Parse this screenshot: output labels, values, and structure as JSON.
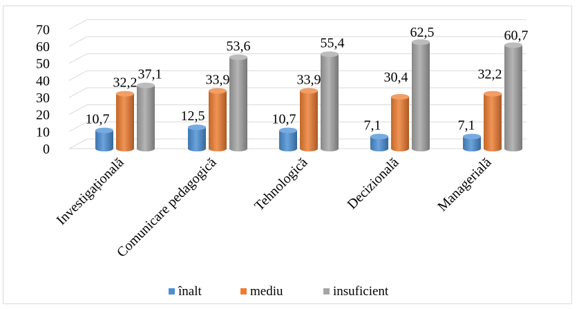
{
  "chart_data": {
    "type": "bar",
    "style": "3d-cylinder",
    "categories": [
      "Investigațională",
      "Comunicare pedagogică",
      "Tehnologică",
      "Decizională",
      "Managerială"
    ],
    "series": [
      {
        "name": "înalt",
        "color": "#4a8fd6",
        "values": [
          10.7,
          12.5,
          10.7,
          7.1,
          7.1
        ],
        "labels": [
          "10,7",
          "12,5",
          "10,7",
          "7,1",
          "7,1"
        ]
      },
      {
        "name": "mediu",
        "color": "#ed7d31",
        "values": [
          32.2,
          33.9,
          33.9,
          30.4,
          32.2
        ],
        "labels": [
          "32,2",
          "33,9",
          "33,9",
          "30,4",
          "32,2"
        ]
      },
      {
        "name": "insuficient",
        "color": "#a5a5a5",
        "values": [
          37.1,
          53.6,
          55.4,
          62.5,
          60.7
        ],
        "labels": [
          "37,1",
          "53,6",
          "55,4",
          "62,5",
          "60,7"
        ]
      }
    ],
    "ylim": [
      0,
      70
    ],
    "yticks": [
      "0",
      "10",
      "20",
      "30",
      "40",
      "50",
      "60",
      "70"
    ],
    "grid": true,
    "legend_position": "bottom"
  }
}
